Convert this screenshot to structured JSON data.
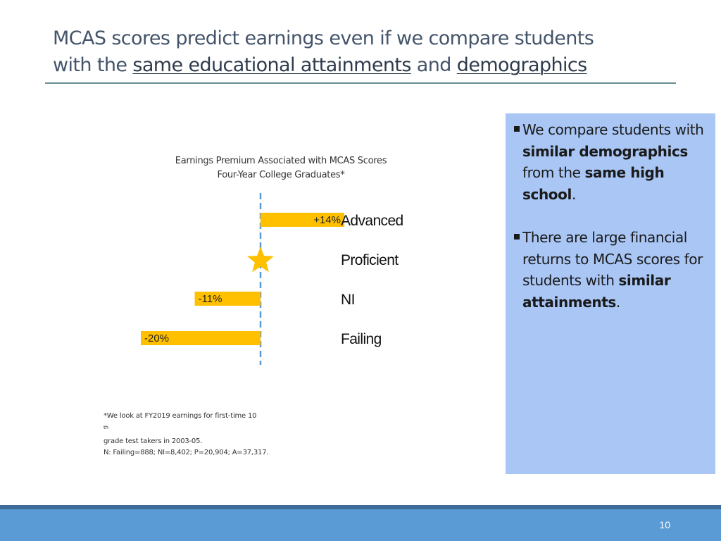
{
  "slide": {
    "title_line1": "MCAS scores predict earnings even if we compare students",
    "title_line2_prefix": "with the ",
    "title_line2_emph1": "same educational attainments",
    "title_line2_mid": " and ",
    "title_line2_emph2": "demographics",
    "page_number": "10"
  },
  "chart_data": {
    "type": "bar",
    "orientation": "horizontal",
    "title": "Earnings Premium Associated with MCAS Scores",
    "subtitle": "Four-Year College Graduates*",
    "categories": [
      "Advanced",
      "Proficient",
      "NI",
      "Failing"
    ],
    "values": [
      14,
      0,
      -11,
      -20
    ],
    "data_labels": [
      "+14%",
      "",
      "-11%",
      "-20%"
    ],
    "baseline_category": "Proficient",
    "baseline_marker": "star",
    "unit": "%",
    "bar_color": "#ffc000",
    "star_color": "#ffc000",
    "baseline_line_color": "#5b9bd5",
    "grid": false
  },
  "footnote": {
    "line1_prefix": "*We look at FY2019 earnings for first-time 10",
    "line1_sup": "th",
    "line1_suffix": " grade test takers in 2003-05.",
    "line2": "N: Failing=888; NI=8,402; P=20,904; A=37,317."
  },
  "sidebar": {
    "bullet1": {
      "t1": "We compare students with ",
      "b1": "similar demographics",
      "t2": " from the ",
      "b2": "same high school",
      "t3": "."
    },
    "bullet2": {
      "t1": "There are large financial returns to MCAS scores for students with ",
      "b1": "similar attainments",
      "t2": "."
    }
  }
}
